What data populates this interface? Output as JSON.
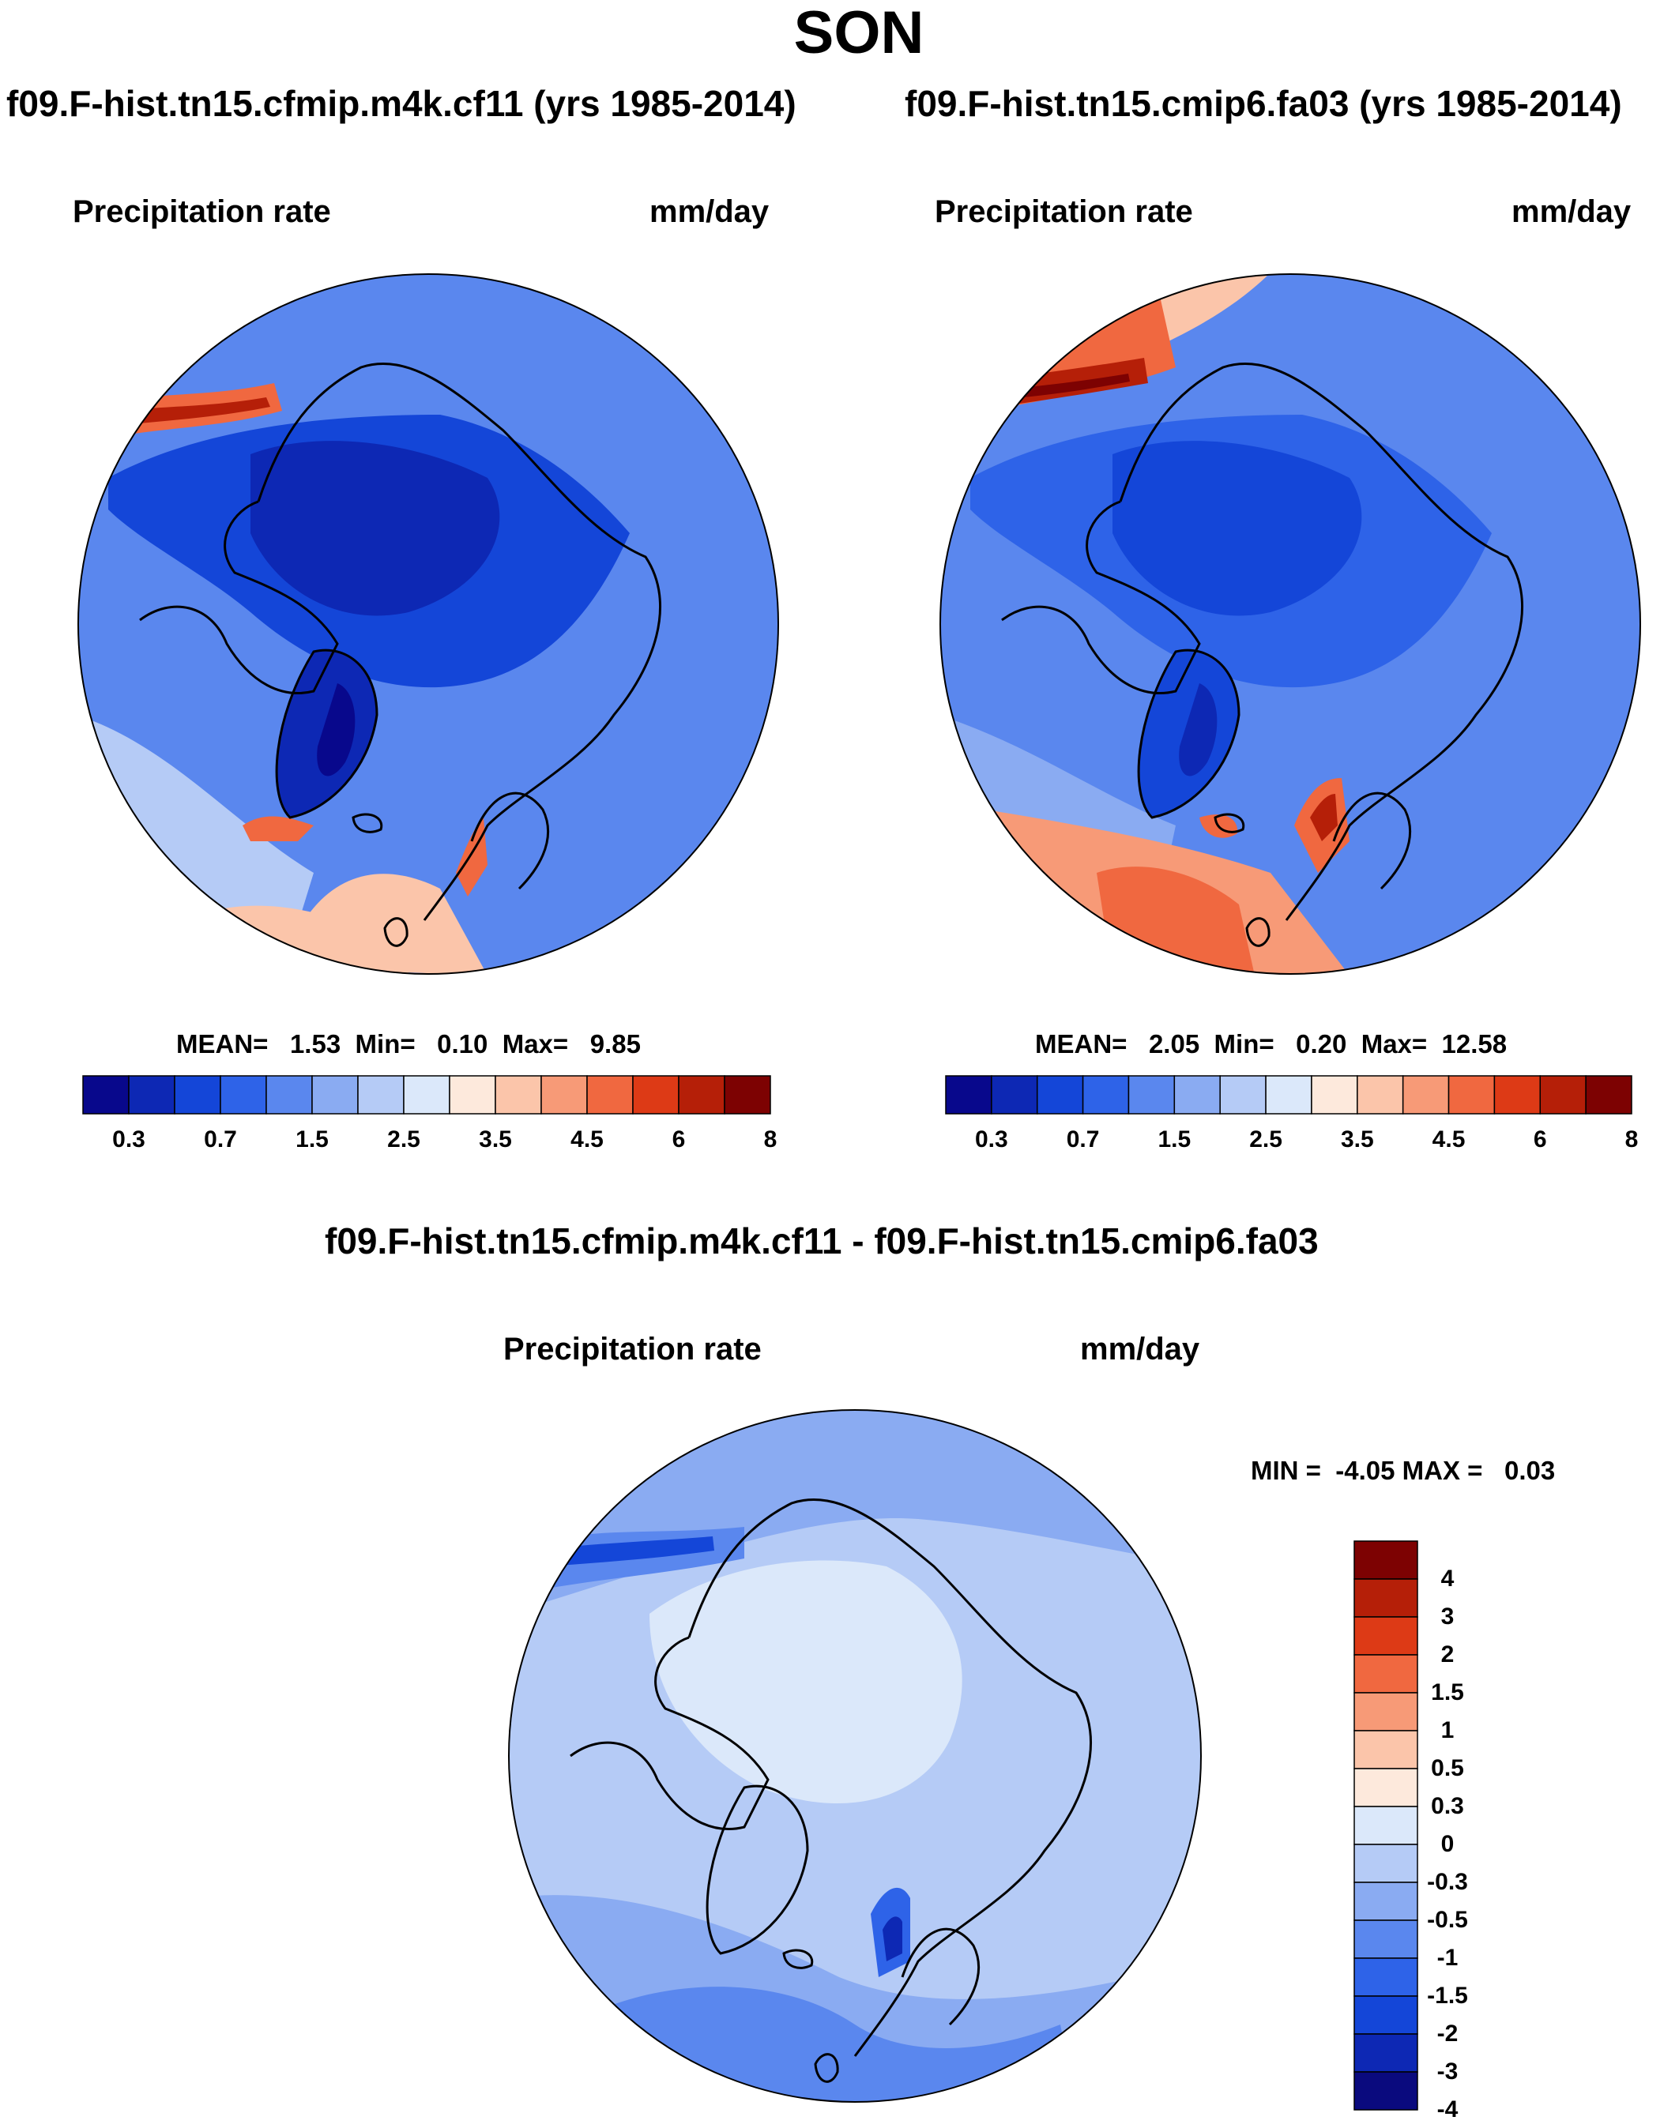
{
  "figure_title": "SON",
  "panels": [
    {
      "title": "f09.F-hist.tn15.cfmip.m4k.cf11 (yrs 1985-2014)",
      "variable": "Precipitation rate",
      "units": "mm/day",
      "stats": {
        "mean_label": "MEAN=",
        "mean": "1.53",
        "min_label": "Min=",
        "min": "0.10",
        "max_label": "Max=",
        "max": "9.85"
      }
    },
    {
      "title": "f09.F-hist.tn15.cmip6.fa03 (yrs 1985-2014)",
      "variable": "Precipitation rate",
      "units": "mm/day",
      "stats": {
        "mean_label": "MEAN=",
        "mean": "2.05",
        "min_label": "Min=",
        "min": "0.20",
        "max_label": "Max=",
        "max": "12.58"
      }
    },
    {
      "title": "f09.F-hist.tn15.cfmip.m4k.cf11 - f09.F-hist.tn15.cmip6.fa03",
      "variable": "Precipitation rate",
      "units": "mm/day",
      "stats": {
        "min_label": "MIN =",
        "min": "-4.05",
        "max_label": "MAX =",
        "max": "0.03"
      }
    }
  ],
  "colorbar_abs": {
    "colors": [
      "#08088c",
      "#0d28b4",
      "#1446d8",
      "#2e63e8",
      "#5a87ee",
      "#8aabf2",
      "#b5cbf6",
      "#dbe8fa",
      "#fde9dc",
      "#fbc5aa",
      "#f79a77",
      "#f06840",
      "#dd3a16",
      "#b51f08",
      "#7d0202"
    ],
    "ticks": [
      "0.3",
      "0.7",
      "1.5",
      "2.5",
      "3.5",
      "4.5",
      "6",
      "8"
    ]
  },
  "colorbar_diff": {
    "colors": [
      "#7d0202",
      "#b51f08",
      "#dd3a16",
      "#f06840",
      "#f79a77",
      "#fbc5aa",
      "#fde9dc",
      "#dbe8fa",
      "#b5cbf6",
      "#8aabf2",
      "#5a87ee",
      "#2e63e8",
      "#1446d8",
      "#0d28b4",
      "#0a0a7e"
    ],
    "ticks": [
      "4",
      "3",
      "2",
      "1.5",
      "1",
      "0.5",
      "0.3",
      "0",
      "-0.3",
      "-0.5",
      "-1",
      "-1.5",
      "-2",
      "-3",
      "-4"
    ]
  },
  "map_colors": {
    "deep_blue": "#0d28b4",
    "mid_blue": "#2e63e8",
    "light_blue": "#8aabf2",
    "pale_blue": "#dbe8fa",
    "peach": "#fbc5aa",
    "orange": "#f06840",
    "dark_red": "#b51f08"
  }
}
